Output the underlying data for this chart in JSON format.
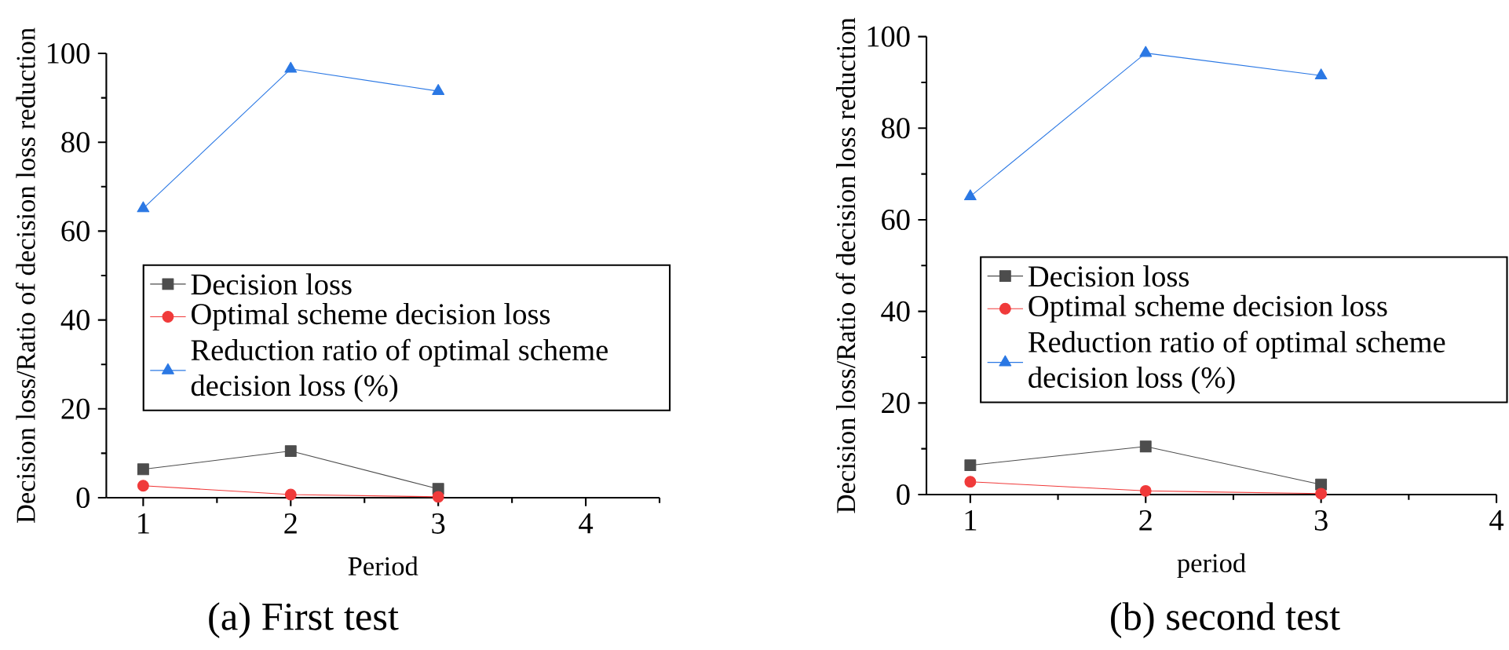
{
  "chart_data": [
    {
      "type": "line",
      "xlabel": "Period",
      "ylabel": "Decision loss/Ratio of decision loss reduction",
      "annotations": [
        "(a) First test"
      ],
      "x": [
        1,
        2,
        3
      ],
      "xlim": [
        0.75,
        4.5
      ],
      "xticks": [
        1,
        {
          "value": 1.5,
          "label": null
        },
        2,
        {
          "value": 2.5,
          "label": null
        },
        3,
        {
          "value": 3.5,
          "label": null
        },
        4,
        {
          "value": 4.5,
          "label": null
        }
      ],
      "ylim": [
        0,
        100
      ],
      "yticks": [
        0,
        {
          "value": 10,
          "label": null
        },
        20,
        {
          "value": 30,
          "label": null
        },
        40,
        {
          "value": 50,
          "label": null
        },
        60,
        {
          "value": 70,
          "label": null
        },
        80,
        {
          "value": 90,
          "label": null
        },
        100
      ],
      "legend": "right",
      "grid": false,
      "series": [
        {
          "name": "Decision loss",
          "color": "#4d4d4d",
          "marker": "square",
          "values": [
            6.4,
            10.5,
            2.0
          ]
        },
        {
          "name": "Optimal scheme decision loss",
          "color": "#f03a3a",
          "marker": "circle",
          "values": [
            2.7,
            0.7,
            0.2
          ]
        },
        {
          "name": "Reduction ratio of optimal scheme decision loss (%)",
          "color": "#2b78e4",
          "marker": "triangle",
          "values": [
            65.1,
            96.5,
            91.5
          ]
        }
      ]
    },
    {
      "type": "line",
      "xlabel": "period",
      "ylabel": "Decision loss/Ratio of decision loss reduction",
      "annotations": [
        "(b) second test"
      ],
      "x": [
        1,
        2,
        3
      ],
      "xlim": [
        0.75,
        4
      ],
      "xticks": [
        1,
        {
          "value": 1.5,
          "label": null
        },
        2,
        {
          "value": 2.5,
          "label": null
        },
        3,
        {
          "value": 3.5,
          "label": null
        },
        4
      ],
      "ylim": [
        0,
        100
      ],
      "yticks": [
        0,
        {
          "value": 10,
          "label": null
        },
        20,
        {
          "value": 30,
          "label": null
        },
        40,
        {
          "value": 50,
          "label": null
        },
        60,
        {
          "value": 70,
          "label": null
        },
        80,
        {
          "value": 90,
          "label": null
        },
        100
      ],
      "legend": "right",
      "grid": false,
      "series": [
        {
          "name": "Decision loss",
          "color": "#4d4d4d",
          "marker": "square",
          "values": [
            6.4,
            10.5,
            2.2
          ]
        },
        {
          "name": "Optimal scheme decision loss",
          "color": "#f03a3a",
          "marker": "circle",
          "values": [
            2.8,
            0.8,
            0.2
          ]
        },
        {
          "name": "Reduction ratio of optimal scheme decision loss (%)",
          "color": "#2b78e4",
          "marker": "triangle",
          "values": [
            65.1,
            96.4,
            91.5
          ]
        }
      ]
    }
  ]
}
